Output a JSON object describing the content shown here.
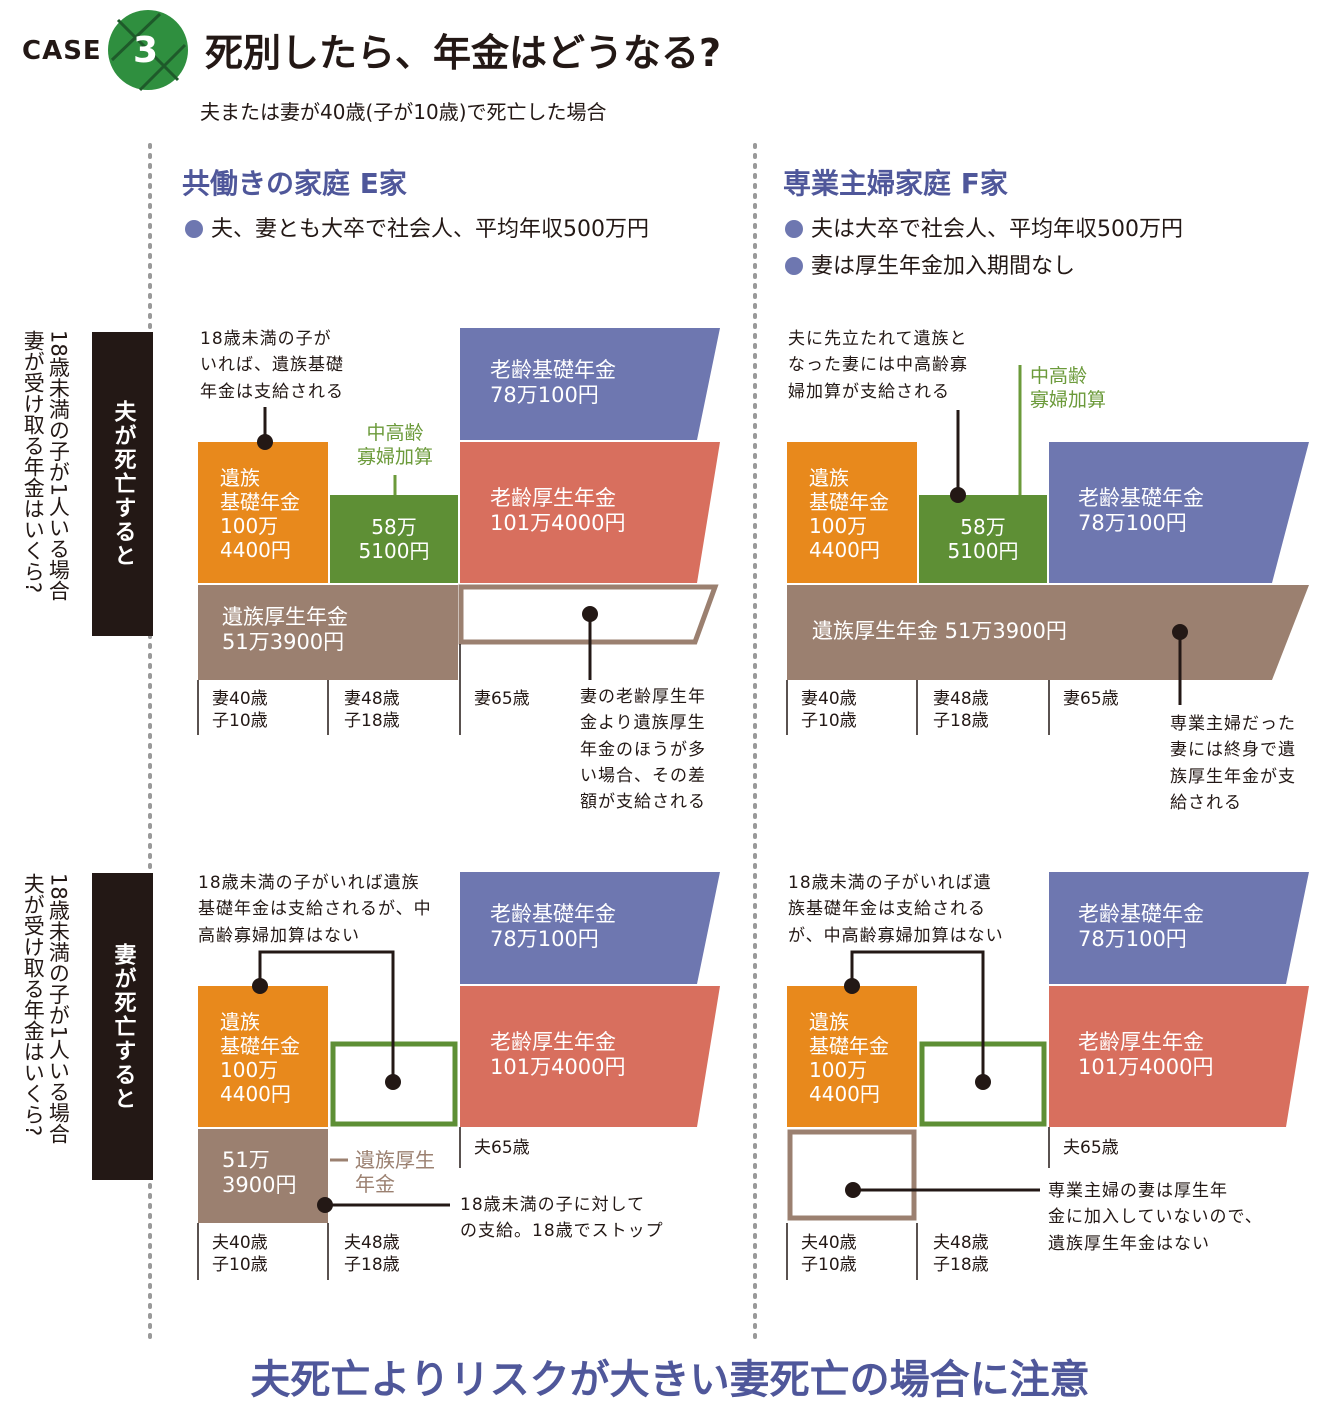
{
  "header": {
    "case_label": "CASE",
    "case_number": "3",
    "title": "死別したら、年金はどうなる?",
    "subtitle": "夫または妻が40歳(子が10歳)で死亡した場合"
  },
  "colors": {
    "orange": "#e8891c",
    "green": "#5e8f35",
    "blue": "#6e77b0",
    "red": "#d86f5e",
    "brown": "#9b8070",
    "dark": "#231815",
    "heading": "#4f579a"
  },
  "columns": [
    {
      "heading": "共働きの家庭 E家",
      "bullets": [
        "夫、妻とも大卒で社会人、平均年収500万円"
      ]
    },
    {
      "heading": "専業主婦家庭 F家",
      "bullets": [
        "夫は大卒で社会人、平均年収500万円",
        "妻は厚生年金加入期間なし"
      ]
    }
  ],
  "rows": [
    {
      "label": "夫が死亡すると",
      "question": "18歳未満の子が1人いる場合\n妻が受け取る年金はいくら?"
    },
    {
      "label": "妻が死亡すると",
      "question": "18歳未満の子が1人いる場合\n夫が受け取る年金はいくら?"
    }
  ],
  "panels": {
    "e_husband": {
      "note_top": "18歳未満の子が\nいれば、遺族基礎\n年金は支給される",
      "widow_label": "中高齢\n寡婦加算",
      "survivor_basic": "遺族\n基礎年金\n100万\n4400円",
      "widow_amount": "58万\n5100円",
      "old_basic": "老齢基礎年金\n78万100円",
      "old_employee": "老齢厚生年金\n101万4000円",
      "survivor_employee": "遺族厚生年金\n51万3900円",
      "timeline": [
        "妻40歳\n子10歳",
        "妻48歳\n子18歳",
        "妻65歳"
      ],
      "note_bottom": "妻の老齢厚生年\n金より遺族厚生\n年金のほうが多\nい場合、その差\n額が支給される"
    },
    "f_husband": {
      "note_top": "夫に先立たれて遺族と\nなった妻には中高齢寡\n婦加算が支給される",
      "widow_label": "中高齢\n寡婦加算",
      "survivor_basic": "遺族\n基礎年金\n100万\n4400円",
      "widow_amount": "58万\n5100円",
      "old_basic": "老齢基礎年金\n78万100円",
      "survivor_employee": "遺族厚生年金 51万3900円",
      "timeline": [
        "妻40歳\n子10歳",
        "妻48歳\n子18歳",
        "妻65歳"
      ],
      "note_bottom": "専業主婦だった\n妻には終身で遺\n族厚生年金が支\n給される"
    },
    "e_wife": {
      "note_top": "18歳未満の子がいれば遺族\n基礎年金は支給されるが、中\n高齢寡婦加算はない",
      "old_basic": "老齢基礎年金\n78万100円",
      "survivor_basic": "遺族\n基礎年金\n100万\n4400円",
      "old_employee": "老齢厚生年金\n101万4000円",
      "survivor_employee_amount": "51万\n3900円",
      "survivor_employee_label": "遺族厚生\n年金",
      "note_bottom": "18歳未満の子に対して\nの支給。18歳でストップ",
      "timeline": [
        "夫40歳\n子10歳",
        "夫48歳\n子18歳",
        "夫65歳"
      ]
    },
    "f_wife": {
      "note_top": "18歳未満の子がいれば遺\n族基礎年金は支給される\nが、中高齢寡婦加算はない",
      "old_basic": "老齢基礎年金\n78万100円",
      "survivor_basic": "遺族\n基礎年金\n100万\n4400円",
      "old_employee": "老齢厚生年金\n101万4000円",
      "note_bottom": "専業主婦の妻は厚生年\n金に加入していないので、\n遺族厚生年金はない",
      "timeline": [
        "夫40歳\n子10歳",
        "夫48歳\n子18歳",
        "夫65歳"
      ]
    }
  },
  "footer": "夫死亡よりリスクが大きい妻死亡の場合に注意"
}
